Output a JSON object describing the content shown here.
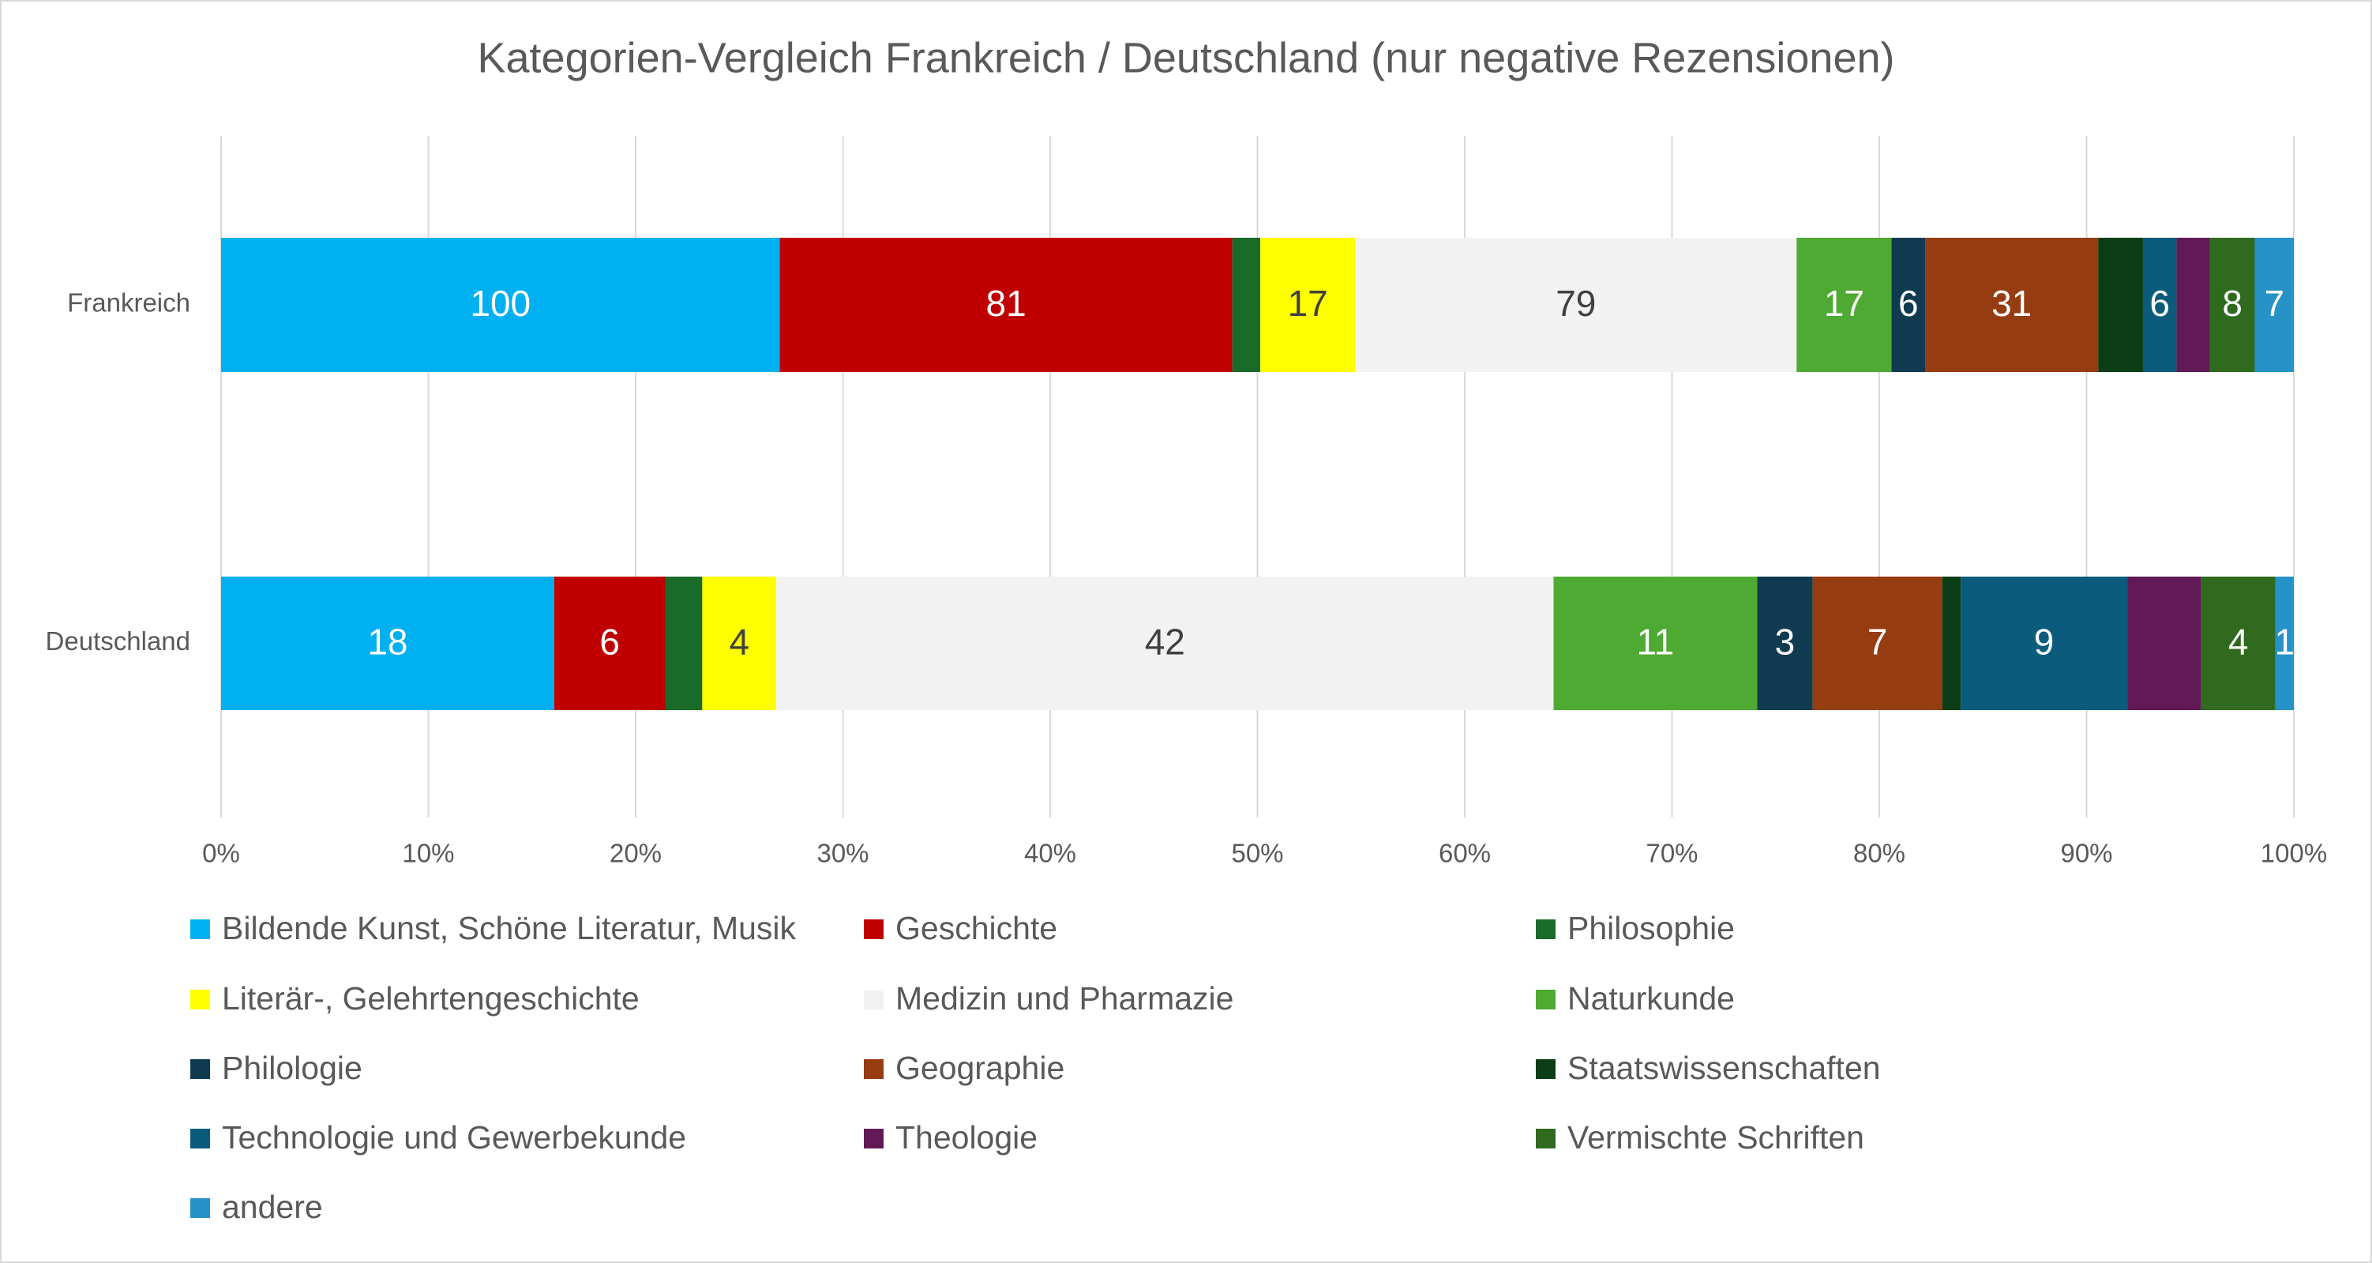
{
  "chart_data": {
    "type": "stacked-bar-100",
    "title": "Kategorien-Vergleich Frankreich / Deutschland (nur negative Rezensionen)",
    "categories": [
      "Frankreich",
      "Deutschland"
    ],
    "xlim": [
      0,
      100
    ],
    "xticks": [
      {
        "value": 0,
        "label": "0%"
      },
      {
        "value": 10,
        "label": "10%"
      },
      {
        "value": 20,
        "label": "20%"
      },
      {
        "value": 30,
        "label": "30%"
      },
      {
        "value": 40,
        "label": "40%"
      },
      {
        "value": 50,
        "label": "50%"
      },
      {
        "value": 60,
        "label": "60%"
      },
      {
        "value": 70,
        "label": "70%"
      },
      {
        "value": 80,
        "label": "80%"
      },
      {
        "value": 90,
        "label": "90%"
      },
      {
        "value": 100,
        "label": "100%"
      }
    ],
    "grid": true,
    "legend": "bottom",
    "series": [
      {
        "name": "Bildende Kunst, Schöne Literatur, Musik",
        "color": "#00b0f0",
        "values": [
          100,
          18
        ],
        "data_labels": true
      },
      {
        "name": "Geschichte",
        "color": "#c00000",
        "values": [
          81,
          6
        ],
        "data_labels": true
      },
      {
        "name": "Philosophie",
        "color": "#1a6b2a",
        "values": [
          5,
          2
        ],
        "data_labels": false
      },
      {
        "name": "Literär-, Gelehrtengeschichte",
        "color": "#ffff00",
        "values": [
          17,
          4
        ],
        "data_labels": true
      },
      {
        "name": "Medizin und Pharmazie",
        "color": "#f2f2f2",
        "values": [
          79,
          42
        ],
        "data_labels": true
      },
      {
        "name": "Naturkunde",
        "color": "#4eaa32",
        "values": [
          17,
          11
        ],
        "data_labels": true
      },
      {
        "name": "Philologie",
        "color": "#0f3a50",
        "values": [
          6,
          3
        ],
        "data_labels": true
      },
      {
        "name": "Geographie",
        "color": "#963c11",
        "values": [
          31,
          7
        ],
        "data_labels": true
      },
      {
        "name": "Staatswissenschaften",
        "color": "#0d3d17",
        "values": [
          8,
          1
        ],
        "data_labels": false
      },
      {
        "name": "Technologie und Gewerbekunde",
        "color": "#0b5b7d",
        "values": [
          6,
          9
        ],
        "data_labels": true
      },
      {
        "name": "Theologie",
        "color": "#611a55",
        "values": [
          6,
          4
        ],
        "data_labels": false
      },
      {
        "name": "Vermischte Schriften",
        "color": "#2f6a1f",
        "values": [
          8,
          4
        ],
        "data_labels": true
      },
      {
        "name": "andere",
        "color": "#2592c8",
        "values": [
          7,
          1
        ],
        "data_labels": true
      }
    ]
  }
}
